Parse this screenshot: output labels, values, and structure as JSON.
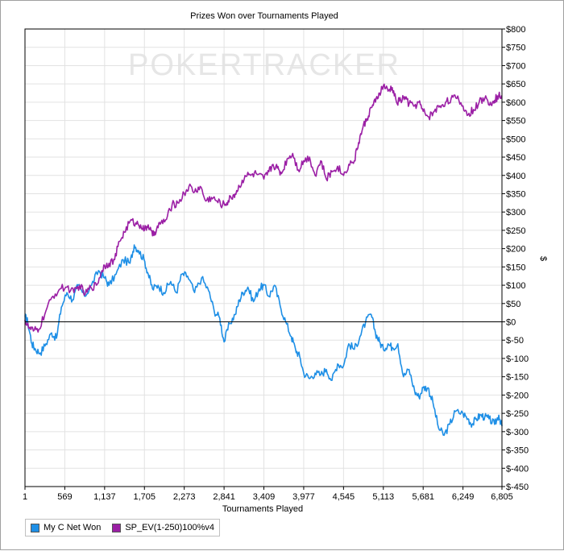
{
  "chart_data": {
    "type": "line",
    "title": "Prizes Won over Tournaments Played",
    "xlabel": "Tournaments Played",
    "ylabel": "$",
    "watermark": "POKERTRACKER",
    "xlim": [
      1,
      6805
    ],
    "ylim": [
      -450,
      800
    ],
    "x_ticks": [
      1,
      569,
      1137,
      1705,
      2273,
      2841,
      3409,
      3977,
      4545,
      5113,
      5681,
      6249,
      6805
    ],
    "x_tick_labels": [
      "1",
      "569",
      "1,137",
      "1,705",
      "2,273",
      "2,841",
      "3,409",
      "3,977",
      "4,545",
      "5,113",
      "5,681",
      "6,249",
      "6,805"
    ],
    "y_ticks": [
      800,
      750,
      700,
      650,
      600,
      550,
      500,
      450,
      400,
      350,
      300,
      250,
      200,
      150,
      100,
      50,
      0,
      -50,
      -100,
      -150,
      -200,
      -250,
      -300,
      -350,
      -400,
      -450
    ],
    "y_tick_labels": [
      "$800",
      "$750",
      "$700",
      "$650",
      "$600",
      "$550",
      "$500",
      "$450",
      "$400",
      "$350",
      "$300",
      "$250",
      "$200",
      "$150",
      "$100",
      "$50",
      "$0",
      "$-50",
      "$-100",
      "$-150",
      "$-200",
      "$-250",
      "$-300",
      "$-350",
      "$-400",
      "$-450"
    ],
    "y_axis_side": "right",
    "grid": true,
    "legend_position": "bottom-left",
    "series": [
      {
        "name": "My C Net Won",
        "color": "#1e8fe6",
        "x": [
          1,
          40,
          100,
          150,
          220,
          300,
          380,
          450,
          520,
          600,
          680,
          760,
          850,
          950,
          1050,
          1137,
          1200,
          1300,
          1400,
          1500,
          1560,
          1620,
          1700,
          1760,
          1820,
          1900,
          1980,
          2080,
          2160,
          2240,
          2320,
          2420,
          2520,
          2620,
          2700,
          2780,
          2841,
          2920,
          3000,
          3060,
          3110,
          3180,
          3260,
          3340,
          3409,
          3480,
          3560,
          3640,
          3720,
          3800,
          3860,
          3920,
          3977,
          4060,
          4140,
          4220,
          4300,
          4380,
          4460,
          4545,
          4620,
          4700,
          4780,
          4860,
          4940,
          5000,
          5060,
          5113,
          5180,
          5240,
          5320,
          5400,
          5480,
          5560,
          5620,
          5681,
          5750,
          5820,
          5900,
          5980,
          6060,
          6140,
          6249,
          6320,
          6380,
          6440,
          6500,
          6560,
          6620,
          6700,
          6760,
          6805
        ],
        "values": [
          15,
          0,
          -60,
          -75,
          -85,
          -60,
          -30,
          -45,
          40,
          80,
          60,
          100,
          70,
          100,
          140,
          120,
          100,
          130,
          170,
          160,
          210,
          195,
          170,
          130,
          90,
          100,
          80,
          110,
          80,
          130,
          125,
          80,
          120,
          85,
          30,
          10,
          -55,
          -5,
          20,
          60,
          80,
          95,
          55,
          90,
          100,
          70,
          100,
          45,
          0,
          -40,
          -75,
          -95,
          -140,
          -155,
          -140,
          -145,
          -130,
          -160,
          -115,
          -120,
          -60,
          -75,
          -40,
          0,
          20,
          -30,
          -55,
          -75,
          -60,
          -70,
          -60,
          -150,
          -130,
          -190,
          -205,
          -180,
          -180,
          -220,
          -290,
          -310,
          -280,
          -245,
          -250,
          -265,
          -280,
          -265,
          -255,
          -260,
          -265,
          -280,
          -255,
          -285
        ]
      },
      {
        "name": "SP_EV(1-250)100%v4",
        "color": "#9b1fa5",
        "x": [
          1,
          50,
          120,
          200,
          300,
          400,
          500,
          600,
          700,
          780,
          860,
          940,
          1020,
          1100,
          1137,
          1200,
          1280,
          1350,
          1420,
          1500,
          1580,
          1650,
          1705,
          1760,
          1820,
          1880,
          1940,
          2020,
          2100,
          2180,
          2273,
          2340,
          2420,
          2500,
          2580,
          2660,
          2740,
          2820,
          2880,
          2940,
          3000,
          3060,
          3140,
          3220,
          3300,
          3409,
          3480,
          3540,
          3600,
          3660,
          3740,
          3820,
          3900,
          3977,
          4060,
          4140,
          4220,
          4300,
          4380,
          4460,
          4545,
          4620,
          4700,
          4760,
          4820,
          4880,
          4940,
          5000,
          5060,
          5113,
          5180,
          5240,
          5300,
          5360,
          5420,
          5480,
          5560,
          5620,
          5681,
          5760,
          5840,
          5920,
          6000,
          6080,
          6160,
          6249,
          6320,
          6400,
          6480,
          6560,
          6640,
          6700,
          6760,
          6805
        ],
        "values": [
          5,
          -15,
          -25,
          -20,
          30,
          70,
          90,
          95,
          80,
          100,
          75,
          95,
          100,
          140,
          155,
          160,
          170,
          220,
          245,
          275,
          270,
          265,
          250,
          265,
          235,
          255,
          270,
          280,
          320,
          325,
          350,
          370,
          355,
          370,
          330,
          340,
          330,
          320,
          325,
          340,
          350,
          370,
          400,
          400,
          405,
          390,
          410,
          430,
          420,
          405,
          445,
          460,
          415,
          440,
          450,
          400,
          440,
          390,
          410,
          425,
          400,
          430,
          440,
          490,
          530,
          555,
          585,
          600,
          625,
          645,
          630,
          640,
          600,
          605,
          615,
          595,
          590,
          600,
          575,
          560,
          575,
          590,
          600,
          610,
          610,
          590,
          565,
          580,
          600,
          610,
          600,
          605,
          620,
          615
        ]
      }
    ]
  }
}
